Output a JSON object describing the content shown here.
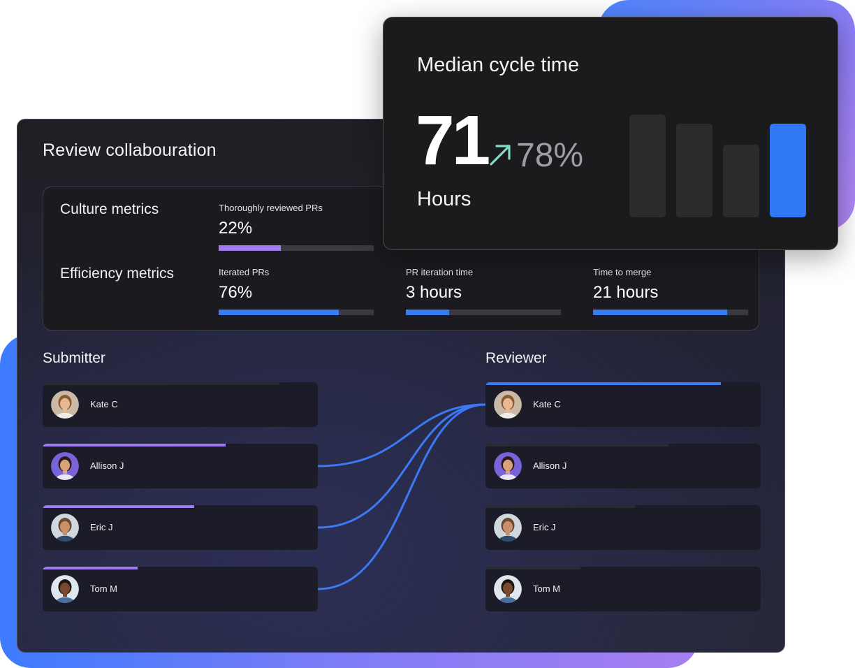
{
  "review_card": {
    "title": "Review collabouration",
    "culture_label": "Culture metrics",
    "efficiency_label": "Efficiency metrics",
    "culture_metrics": [
      {
        "label": "Thoroughly reviewed PRs",
        "value": "22%",
        "fill_fraction": 0.4,
        "color": "#a07cf3"
      }
    ],
    "efficiency_metrics": [
      {
        "label": "Iterated PRs",
        "value": "76%",
        "fill_fraction": 0.775,
        "color": "#3b7af5"
      },
      {
        "label": "PR iteration time",
        "value": "3 hours",
        "fill_fraction": 0.28,
        "color": "#3b7af5"
      },
      {
        "label": "Time to merge",
        "value": "21 hours",
        "fill_fraction": 0.865,
        "color": "#3b7af5"
      }
    ]
  },
  "submitter": {
    "title": "Submitter",
    "people": [
      {
        "name": "Kate C",
        "avatar": "avatar-kate",
        "accent_fraction": 0.86,
        "accent_color": "#2a2a33"
      },
      {
        "name": "Allison J",
        "avatar": "avatar-allison",
        "accent_fraction": 0.665,
        "accent_color": "#9f7bf3"
      },
      {
        "name": "Eric J",
        "avatar": "avatar-eric",
        "accent_fraction": 0.55,
        "accent_color": "#9f7bf3"
      },
      {
        "name": "Tom M",
        "avatar": "avatar-tom",
        "accent_fraction": 0.345,
        "accent_color": "#9f7bf3"
      }
    ]
  },
  "reviewer": {
    "title": "Reviewer",
    "people": [
      {
        "name": "Kate C",
        "avatar": "avatar-kate",
        "accent_fraction": 0.855,
        "accent_color": "#3b7af5"
      },
      {
        "name": "Allison J",
        "avatar": "avatar-allison",
        "accent_fraction": 0.665,
        "accent_color": "#2a2a33"
      },
      {
        "name": "Eric J",
        "avatar": "avatar-eric",
        "accent_fraction": 0.545,
        "accent_color": "#2a2a33"
      },
      {
        "name": "Tom M",
        "avatar": "avatar-tom",
        "accent_fraction": 0.345,
        "accent_color": "#2a2a33"
      }
    ]
  },
  "links": {
    "color": "#3b7af5",
    "connections": [
      {
        "from": "Allison J",
        "to": "Kate C"
      },
      {
        "from": "Eric J",
        "to": "Kate C"
      },
      {
        "from": "Tom M",
        "to": "Kate C"
      }
    ]
  },
  "cycle_time": {
    "title": "Median cycle time",
    "value": "71",
    "change": "78%",
    "unit": "Hours",
    "arrow_icon": "arrow-up-right-icon",
    "arrow_color": "#7fdcc3",
    "bars": [
      {
        "value": 0.92,
        "color": "#2c2c2f"
      },
      {
        "value": 0.84,
        "color": "#2c2c2f"
      },
      {
        "value": 0.65,
        "color": "#2c2c2f"
      },
      {
        "value": 0.84,
        "color": "#2f78f6"
      }
    ]
  }
}
